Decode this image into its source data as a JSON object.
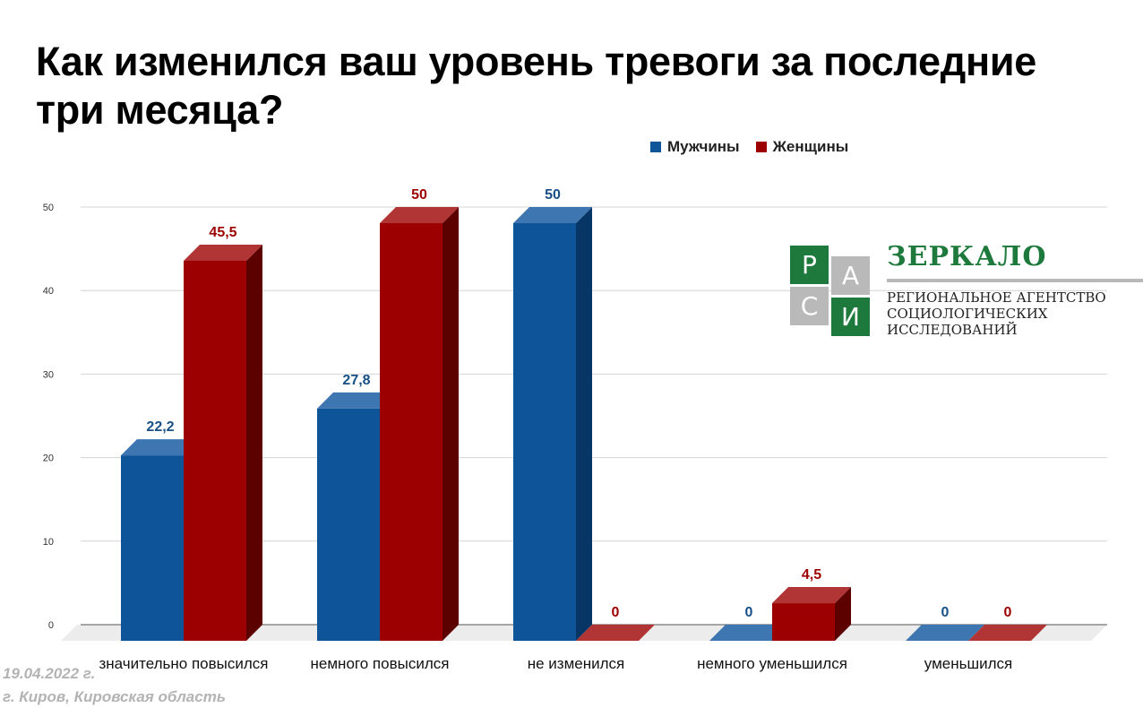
{
  "title": "Как изменился ваш уровень тревоги за последние три месяца?",
  "legend": [
    {
      "name": "Мужчины",
      "color": "#0e5499"
    },
    {
      "name": "Женщины",
      "color": "#9c0000"
    }
  ],
  "logo": {
    "letters": [
      "Р",
      "А",
      "С",
      "И"
    ],
    "name": "ЗЕРКАЛО",
    "subtitle_lines": [
      "РЕГИОНАЛЬНОЕ АГЕНТСТВО",
      "СОЦИОЛОГИЧЕСКИХ",
      "ИССЛЕДОВАНИЙ"
    ],
    "green": "#1e7a3c",
    "gray": "#b9b9b9"
  },
  "footer": {
    "date": "19.04.2022 г.",
    "place": "г. Киров, Кировская область"
  },
  "chart_data": {
    "type": "bar",
    "categories": [
      "значительно повысился",
      "немного повысился",
      "не изменился",
      "немного уменьшился",
      "уменьшился"
    ],
    "series": [
      {
        "name": "Мужчины",
        "values": [
          22.2,
          27.8,
          50,
          0,
          0
        ],
        "labels": [
          "22,2",
          "27,8",
          "50",
          "0",
          "0"
        ]
      },
      {
        "name": "Женщины",
        "values": [
          45.5,
          50,
          0,
          4.5,
          0
        ],
        "labels": [
          "45,5",
          "50",
          "0",
          "4,5",
          "0"
        ]
      }
    ],
    "yticks": [
      0,
      10,
      20,
      30,
      40,
      50
    ],
    "ylim": [
      0,
      50
    ],
    "grid": true,
    "legend_position": "top-right"
  }
}
